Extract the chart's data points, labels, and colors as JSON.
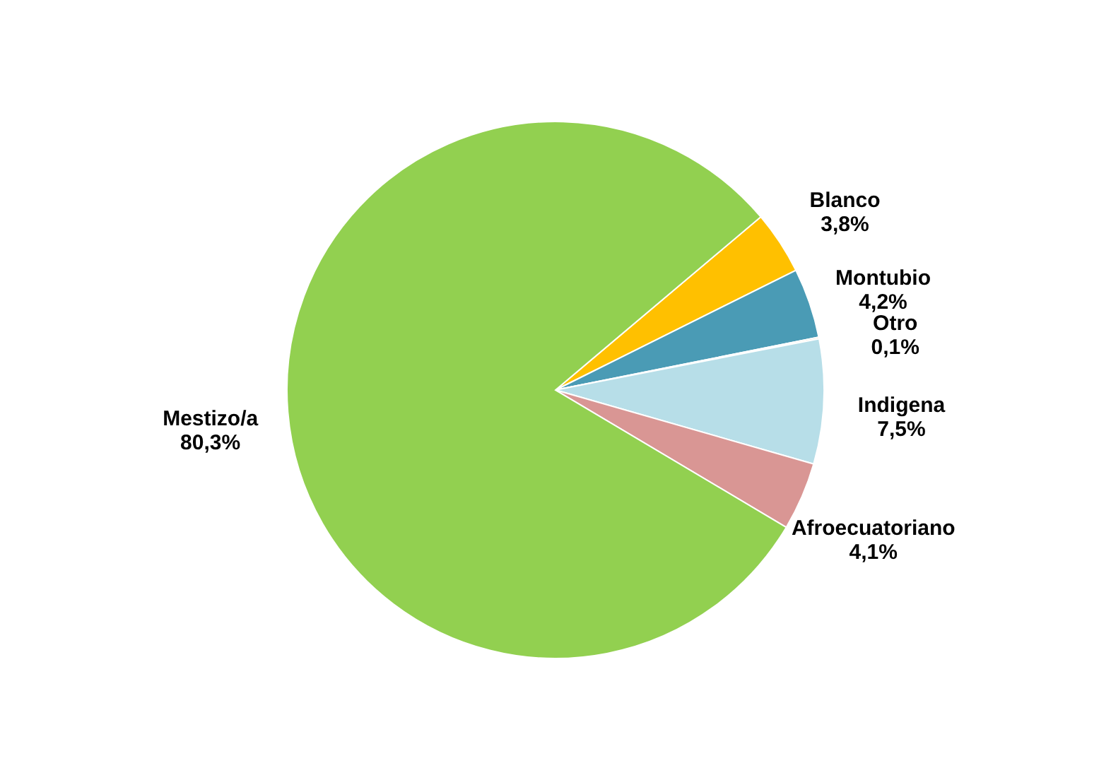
{
  "chart_data": {
    "type": "pie",
    "categories": [
      "Blanco",
      "Montubio",
      "Otro",
      "Indigena",
      "Afroecuatoriano",
      "Mestizo/a"
    ],
    "values": [
      3.8,
      4.2,
      0.1,
      7.5,
      4.1,
      80.3
    ],
    "colors": [
      "#ffc000",
      "#4a9bb5",
      "#f79646",
      "#b7dee8",
      "#d99694",
      "#92d050"
    ],
    "value_labels": [
      "3,8%",
      "4,2%",
      "0,1%",
      "7,5%",
      "4,1%",
      "80,3%"
    ],
    "legend": false
  }
}
